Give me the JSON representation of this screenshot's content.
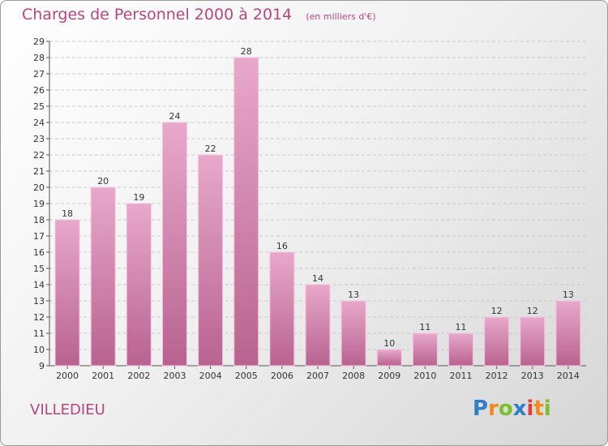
{
  "chart_data": {
    "type": "bar",
    "title": "Charges de Personnel 2000 à 2014",
    "subtitle": "(en milliers d'€)",
    "categories": [
      "2000",
      "2001",
      "2002",
      "2003",
      "2004",
      "2005",
      "2006",
      "2007",
      "2008",
      "2009",
      "2010",
      "2011",
      "2012",
      "2013",
      "2014"
    ],
    "values": [
      18,
      20,
      19,
      24,
      22,
      28,
      16,
      14,
      13,
      10,
      11,
      11,
      12,
      12,
      13
    ],
    "xlabel": "",
    "ylabel": "",
    "ylim": [
      9,
      29
    ],
    "yticks": [
      9,
      10,
      11,
      12,
      13,
      14,
      15,
      16,
      17,
      18,
      19,
      20,
      21,
      22,
      23,
      24,
      25,
      26,
      27,
      28,
      29
    ],
    "grid": true,
    "bar_color": "#d98bb4"
  },
  "place": "VILLEDIEU",
  "logo": {
    "letters": [
      "P",
      "r",
      "o",
      "x",
      "i",
      "t",
      "i"
    ],
    "colors": [
      "#2f7fc8",
      "#f08a1c",
      "#7bbf2a",
      "#2f7fc8",
      "#e23b3b",
      "#f08a1c",
      "#7bbf2a"
    ]
  }
}
